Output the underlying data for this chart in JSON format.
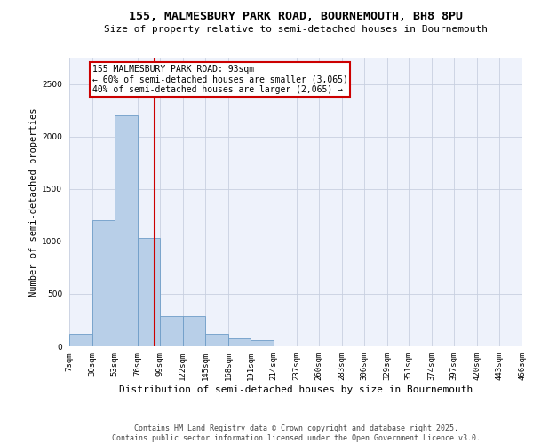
{
  "title_line1": "155, MALMESBURY PARK ROAD, BOURNEMOUTH, BH8 8PU",
  "title_line2": "Size of property relative to semi-detached houses in Bournemouth",
  "xlabel": "Distribution of semi-detached houses by size in Bournemouth",
  "ylabel": "Number of semi-detached properties",
  "background_color": "#eef2fb",
  "bar_color": "#b8cfe8",
  "bar_edge_color": "#6e9dc8",
  "vline_color": "#cc0000",
  "vline_value": 93,
  "annotation_line1": "155 MALMESBURY PARK ROAD: 93sqm",
  "annotation_line2": "← 60% of semi-detached houses are smaller (3,065)",
  "annotation_line3": "40% of semi-detached houses are larger (2,065) →",
  "footer_line1": "Contains HM Land Registry data © Crown copyright and database right 2025.",
  "footer_line2": "Contains public sector information licensed under the Open Government Licence v3.0.",
  "bin_edges": [
    7,
    30,
    53,
    76,
    99,
    122,
    145,
    168,
    191,
    214,
    237,
    260,
    283,
    306,
    329,
    351,
    374,
    397,
    420,
    443,
    466
  ],
  "bin_labels": [
    "7sqm",
    "30sqm",
    "53sqm",
    "76sqm",
    "99sqm",
    "122sqm",
    "145sqm",
    "168sqm",
    "191sqm",
    "214sqm",
    "237sqm",
    "260sqm",
    "283sqm",
    "306sqm",
    "329sqm",
    "351sqm",
    "374sqm",
    "397sqm",
    "420sqm",
    "443sqm",
    "466sqm"
  ],
  "bar_heights": [
    120,
    1200,
    2200,
    1030,
    290,
    290,
    120,
    80,
    60,
    0,
    0,
    0,
    0,
    0,
    0,
    0,
    0,
    0,
    0,
    0
  ],
  "ylim": [
    0,
    2750
  ],
  "yticks": [
    0,
    500,
    1000,
    1500,
    2000,
    2500
  ],
  "grid_color": "#c8d0e0",
  "title1_fontsize": 9.5,
  "title2_fontsize": 8.0,
  "annot_fontsize": 7.0,
  "tick_fontsize": 6.5,
  "ylabel_fontsize": 7.5,
  "xlabel_fontsize": 8.0,
  "footer_fontsize": 6.0
}
